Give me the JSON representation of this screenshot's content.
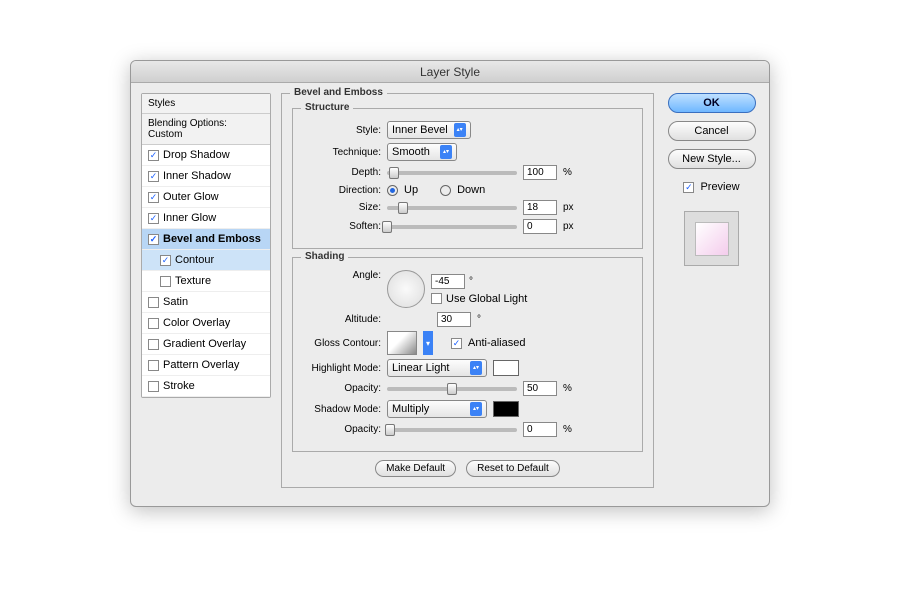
{
  "window": {
    "title": "Layer Style"
  },
  "sidebar": {
    "styles_header": "Styles",
    "blending_header": "Blending Options: Custom",
    "items": [
      {
        "label": "Drop Shadow",
        "checked": true
      },
      {
        "label": "Inner Shadow",
        "checked": true
      },
      {
        "label": "Outer Glow",
        "checked": true
      },
      {
        "label": "Inner Glow",
        "checked": true
      },
      {
        "label": "Bevel and Emboss",
        "checked": true,
        "selected": true
      },
      {
        "label": "Contour",
        "checked": true,
        "sub": true,
        "selected": true
      },
      {
        "label": "Texture",
        "checked": false,
        "sub": true
      },
      {
        "label": "Satin",
        "checked": false
      },
      {
        "label": "Color Overlay",
        "checked": false
      },
      {
        "label": "Gradient Overlay",
        "checked": false
      },
      {
        "label": "Pattern Overlay",
        "checked": false
      },
      {
        "label": "Stroke",
        "checked": false
      }
    ]
  },
  "panel": {
    "title": "Bevel and Emboss",
    "structure": {
      "legend": "Structure",
      "style_label": "Style:",
      "style_value": "Inner Bevel",
      "technique_label": "Technique:",
      "technique_value": "Smooth",
      "depth_label": "Depth:",
      "depth_value": "100",
      "depth_unit": "%",
      "depth_pct": 5,
      "direction_label": "Direction:",
      "up_label": "Up",
      "down_label": "Down",
      "direction": "up",
      "size_label": "Size:",
      "size_value": "18",
      "size_unit": "px",
      "size_pct": 12,
      "soften_label": "Soften:",
      "soften_value": "0",
      "soften_unit": "px",
      "soften_pct": 0
    },
    "shading": {
      "legend": "Shading",
      "angle_label": "Angle:",
      "angle_value": "-45",
      "angle_unit": "°",
      "global_label": "Use Global Light",
      "global_checked": false,
      "altitude_label": "Altitude:",
      "altitude_value": "30",
      "altitude_unit": "°",
      "gloss_label": "Gloss Contour:",
      "aa_label": "Anti-aliased",
      "aa_checked": true,
      "highlight_label": "Highlight Mode:",
      "highlight_value": "Linear Light",
      "highlight_color": "#ffffff",
      "highlight_opacity_label": "Opacity:",
      "highlight_opacity_value": "50",
      "highlight_opacity_pct": 50,
      "pct_unit": "%",
      "shadow_label": "Shadow Mode:",
      "shadow_value": "Multiply",
      "shadow_color": "#000000",
      "shadow_opacity_label": "Opacity:",
      "shadow_opacity_value": "0",
      "shadow_opacity_pct": 2
    },
    "make_default": "Make Default",
    "reset_default": "Reset to Default"
  },
  "buttons": {
    "ok": "OK",
    "cancel": "Cancel",
    "new_style": "New Style...",
    "preview_label": "Preview",
    "preview_checked": true
  },
  "colors": {
    "selected_bg": "#b8d6f5",
    "accent": "#3b82f6"
  }
}
